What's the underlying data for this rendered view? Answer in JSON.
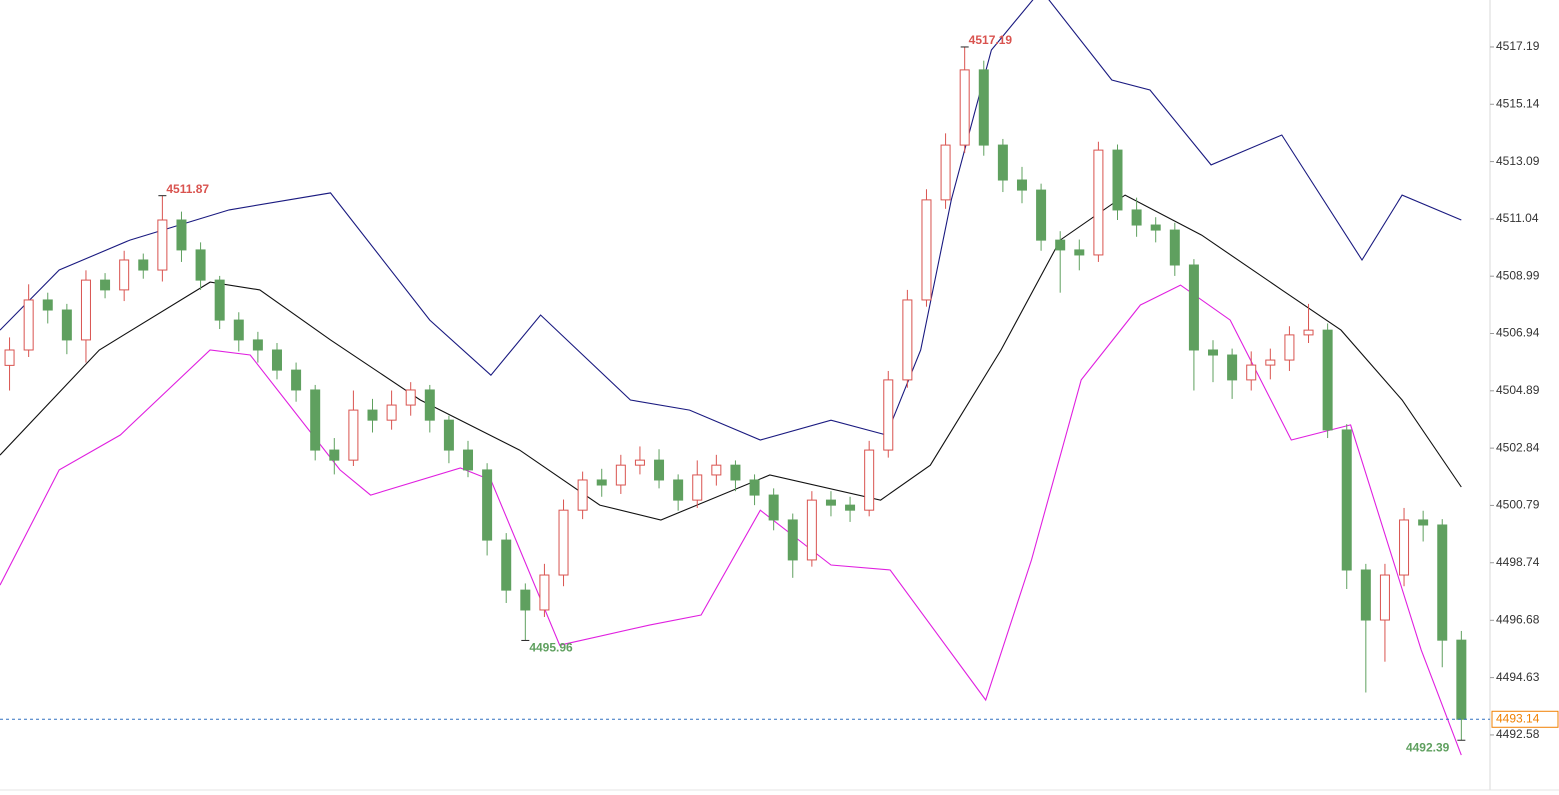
{
  "chart_data": {
    "type": "candlestick",
    "up_color": "#d9534f",
    "down_color": "#5fa05f",
    "open": [
      4505.8,
      4506.35,
      4508.14,
      4507.78,
      4506.71,
      4508.85,
      4508.5,
      4509.57,
      4509.21,
      4511.0,
      4509.93,
      4508.85,
      4507.42,
      4506.71,
      4506.35,
      4505.63,
      4504.92,
      4502.77,
      4502.41,
      4504.2,
      4503.84,
      4504.38,
      4504.92,
      4503.84,
      4502.77,
      4502.06,
      4499.55,
      4497.76,
      4497.05,
      4498.3,
      4500.62,
      4501.7,
      4501.52,
      4502.23,
      4502.41,
      4501.7,
      4500.98,
      4501.88,
      4502.23,
      4501.7,
      4501.16,
      4500.27,
      4498.84,
      4500.98,
      4500.8,
      4500.62,
      4502.77,
      4505.28,
      4508.14,
      4511.72,
      4513.68,
      4516.37,
      4513.68,
      4512.43,
      4512.07,
      4510.28,
      4509.93,
      4509.75,
      4513.5,
      4511.36,
      4510.82,
      4510.64,
      4509.39,
      4506.35,
      4506.17,
      4505.28,
      4505.81,
      4505.99,
      4506.89,
      4507.06,
      4503.49,
      4498.48,
      4496.69,
      4498.3,
      4500.27,
      4500.09,
      4495.97
    ],
    "high": [
      4506.8,
      4508.7,
      4508.4,
      4508.0,
      4509.2,
      4509.1,
      4509.9,
      4509.8,
      4511.87,
      4511.3,
      4510.2,
      4509.0,
      4507.7,
      4507.0,
      4506.6,
      4505.9,
      4505.1,
      4503.2,
      4504.9,
      4504.6,
      4504.9,
      4505.2,
      4505.1,
      4504.0,
      4503.1,
      4502.3,
      4499.8,
      4498.0,
      4498.7,
      4501.0,
      4502.0,
      4502.1,
      4502.6,
      4502.9,
      4502.8,
      4501.9,
      4502.4,
      4502.6,
      4502.4,
      4501.9,
      4501.4,
      4500.5,
      4501.3,
      4501.3,
      4501.1,
      4503.1,
      4505.6,
      4508.5,
      4512.1,
      4514.1,
      4517.19,
      4516.7,
      4513.9,
      4512.9,
      4512.3,
      4510.6,
      4510.3,
      4513.8,
      4513.7,
      4511.8,
      4511.1,
      4510.9,
      4509.6,
      4506.7,
      4506.4,
      4506.3,
      4506.4,
      4507.2,
      4508.0,
      4507.3,
      4503.7,
      4498.7,
      4498.7,
      4500.7,
      4500.6,
      4500.3,
      4496.3
    ],
    "low": [
      4504.9,
      4506.1,
      4507.3,
      4506.2,
      4505.9,
      4508.2,
      4508.1,
      4508.9,
      4508.8,
      4509.5,
      4508.5,
      4507.1,
      4506.3,
      4505.9,
      4505.3,
      4504.5,
      4502.4,
      4501.9,
      4502.2,
      4503.4,
      4503.5,
      4504.0,
      4503.4,
      4502.3,
      4501.8,
      4499.0,
      4497.3,
      4495.96,
      4496.8,
      4497.9,
      4500.3,
      4501.1,
      4501.2,
      4501.9,
      4501.4,
      4500.6,
      4500.7,
      4501.5,
      4501.3,
      4500.8,
      4499.9,
      4498.2,
      4498.6,
      4500.4,
      4500.2,
      4500.4,
      4502.5,
      4505.0,
      4507.9,
      4511.4,
      4513.4,
      4513.3,
      4512.0,
      4511.6,
      4509.9,
      4508.4,
      4509.2,
      4509.5,
      4511.0,
      4510.4,
      4510.2,
      4509.0,
      4504.9,
      4505.2,
      4504.6,
      4504.9,
      4505.3,
      4505.6,
      4506.6,
      4503.2,
      4497.8,
      4494.1,
      4495.2,
      4497.9,
      4499.5,
      4495.0,
      4492.39
    ],
    "close": [
      4506.35,
      4508.14,
      4507.78,
      4506.71,
      4508.85,
      4508.5,
      4509.57,
      4509.21,
      4511.0,
      4509.93,
      4508.85,
      4507.42,
      4506.71,
      4506.35,
      4505.63,
      4504.92,
      4502.77,
      4502.41,
      4504.2,
      4503.84,
      4504.38,
      4504.92,
      4503.84,
      4502.77,
      4502.06,
      4499.55,
      4497.76,
      4497.05,
      4498.3,
      4500.62,
      4501.7,
      4501.52,
      4502.23,
      4502.41,
      4501.7,
      4500.98,
      4501.88,
      4502.23,
      4501.7,
      4501.16,
      4500.27,
      4498.84,
      4500.98,
      4500.8,
      4500.62,
      4502.77,
      4505.28,
      4508.14,
      4511.72,
      4513.68,
      4516.37,
      4513.68,
      4512.43,
      4512.07,
      4510.28,
      4509.93,
      4509.75,
      4513.5,
      4511.36,
      4510.82,
      4510.64,
      4509.39,
      4506.35,
      4506.17,
      4505.28,
      4505.81,
      4505.99,
      4506.89,
      4507.06,
      4503.49,
      4498.48,
      4496.69,
      4498.3,
      4500.27,
      4500.09,
      4495.97,
      4493.14
    ],
    "lines": [
      {
        "color": "#1a1a80",
        "x": [
          -0.5,
          2.6,
          6.3,
          11.5,
          16.8,
          22.0,
          25.2,
          27.8,
          32.5,
          35.6,
          39.3,
          43.0,
          45.9,
          47.7,
          49.3,
          51.4,
          54.0,
          57.7,
          59.7,
          62.9,
          66.6,
          70.8,
          72.9,
          76.0
        ],
        "values": [
          4507.06,
          4509.21,
          4510.28,
          4511.36,
          4511.97,
          4507.42,
          4505.45,
          4507.6,
          4504.56,
          4504.2,
          4503.13,
          4503.84,
          4503.31,
          4506.35,
          4511.72,
          4517.08,
          4519.23,
          4516.01,
          4515.65,
          4512.97,
          4514.04,
          4509.57,
          4511.89,
          4511.0
        ]
      },
      {
        "color": "#111111",
        "x": [
          -0.5,
          4.7,
          10.5,
          13.1,
          16.8,
          21.5,
          26.7,
          30.9,
          34.1,
          39.8,
          45.6,
          48.2,
          51.9,
          55.0,
          58.4,
          62.4,
          66.6,
          69.7,
          72.9,
          76.0
        ],
        "values": [
          4502.59,
          4506.35,
          4508.78,
          4508.5,
          4506.71,
          4504.56,
          4502.77,
          4500.8,
          4500.27,
          4501.88,
          4500.98,
          4502.23,
          4506.35,
          4510.28,
          4511.89,
          4510.46,
          4508.5,
          4507.06,
          4504.56,
          4501.45
        ]
      },
      {
        "color": "#e020e0",
        "x": [
          -0.5,
          2.6,
          5.8,
          10.5,
          12.6,
          17.3,
          18.9,
          23.6,
          25.2,
          28.8,
          33.5,
          36.2,
          39.3,
          43.0,
          46.1,
          51.1,
          53.5,
          56.1,
          59.2,
          61.3,
          63.9,
          67.1,
          70.2,
          73.9,
          76.0
        ],
        "values": [
          4497.94,
          4502.06,
          4503.31,
          4506.35,
          4506.17,
          4502.06,
          4501.16,
          4502.13,
          4501.7,
          4495.79,
          4496.51,
          4496.87,
          4500.62,
          4498.66,
          4498.48,
          4493.83,
          4498.84,
          4505.28,
          4507.96,
          4508.67,
          4507.42,
          4503.13,
          4503.67,
          4495.62,
          4491.86
        ]
      }
    ],
    "current_price_color": "#f08000",
    "xlim": [
      -0.5,
      77.5
    ],
    "ylim": [
      4490.61,
      4518.87
    ],
    "yticks": [
      4517.19,
      4515.14,
      4513.09,
      4511.04,
      4508.99,
      4506.94,
      4504.89,
      4502.84,
      4500.79,
      4498.74,
      4496.68,
      4494.63,
      4492.58
    ]
  }
}
